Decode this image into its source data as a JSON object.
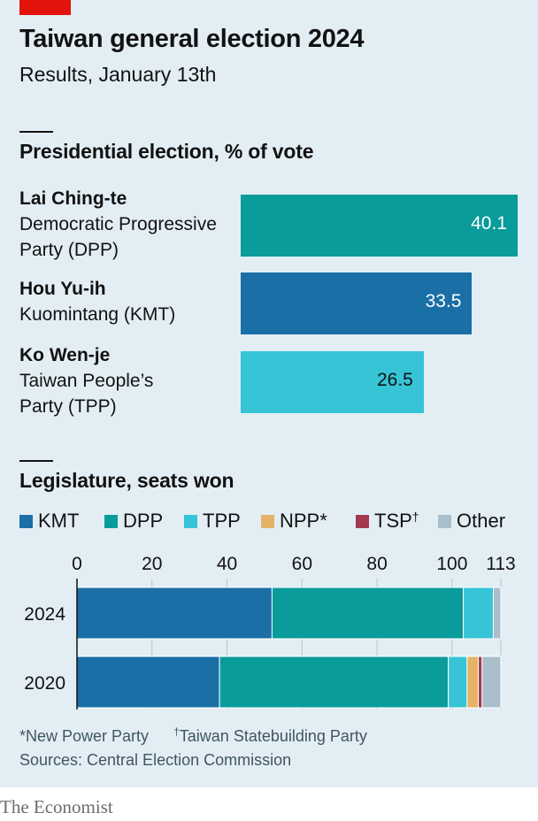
{
  "header": {
    "title": "Taiwan general election 2024",
    "subtitle": "Results, January 13th"
  },
  "presidential": {
    "section_title": "Presidential election, % of vote",
    "candidates": [
      {
        "name": "Lai Ching-te",
        "party_line1": "Democratic Progressive",
        "party_line2": "Party (DPP)",
        "value": 40.1,
        "value_label": "40.1",
        "color": "#0a9b9b",
        "label_color": "#ffffff"
      },
      {
        "name": "Hou Yu-ih",
        "party_line1": "Kuomintang (KMT)",
        "party_line2": "",
        "value": 33.5,
        "value_label": "33.5",
        "color": "#1a6fa6",
        "label_color": "#ffffff"
      },
      {
        "name": "Ko Wen-je",
        "party_line1": "Taiwan People’s",
        "party_line2": "Party (TPP)",
        "value": 26.5,
        "value_label": "26.5",
        "color": "#36c4d6",
        "label_color": "#121212"
      }
    ]
  },
  "legislature": {
    "section_title": "Legislature, seats won",
    "legend": [
      {
        "key": "KMT",
        "label": "KMT",
        "sup": "",
        "color": "#1a6fa6"
      },
      {
        "key": "DPP",
        "label": "DPP",
        "sup": "",
        "color": "#0a9b9b"
      },
      {
        "key": "TPP",
        "label": "TPP",
        "sup": "",
        "color": "#36c4d6"
      },
      {
        "key": "NPP",
        "label": "NPP*",
        "sup": "",
        "color": "#e5b366"
      },
      {
        "key": "TSP",
        "label": "TSP",
        "sup": "†",
        "color": "#a23a4f"
      },
      {
        "key": "Other",
        "label": "Other",
        "sup": "",
        "color": "#a9bfcb"
      }
    ]
  },
  "chart_data": [
    {
      "type": "bar",
      "title": "Presidential election, % of vote",
      "orientation": "horizontal",
      "categories": [
        "Lai Ching-te",
        "Hou Yu-ih",
        "Ko Wen-je"
      ],
      "values": [
        40.1,
        33.5,
        26.5
      ],
      "xlim": [
        0,
        40.1
      ]
    },
    {
      "type": "bar",
      "title": "Legislature, seats won",
      "orientation": "horizontal",
      "stacked": true,
      "categories": [
        "2024",
        "2020"
      ],
      "series": [
        {
          "name": "KMT",
          "values": [
            52,
            38
          ]
        },
        {
          "name": "DPP",
          "values": [
            51,
            61
          ]
        },
        {
          "name": "TPP",
          "values": [
            8,
            5
          ]
        },
        {
          "name": "NPP*",
          "values": [
            0,
            3
          ]
        },
        {
          "name": "TSP†",
          "values": [
            0,
            1
          ]
        },
        {
          "name": "Other",
          "values": [
            2,
            5
          ]
        }
      ],
      "xlim": [
        0,
        113
      ],
      "xticks": [
        0,
        20,
        40,
        60,
        80,
        100,
        113
      ],
      "grid": true,
      "legend_position": "top"
    }
  ],
  "footnotes": {
    "note_npp": "*New Power Party",
    "note_tsp_mark": "†",
    "note_tsp": "Taiwan Statebuilding Party",
    "sources": "Sources: Central Election Commission"
  },
  "brand": "The Economist"
}
